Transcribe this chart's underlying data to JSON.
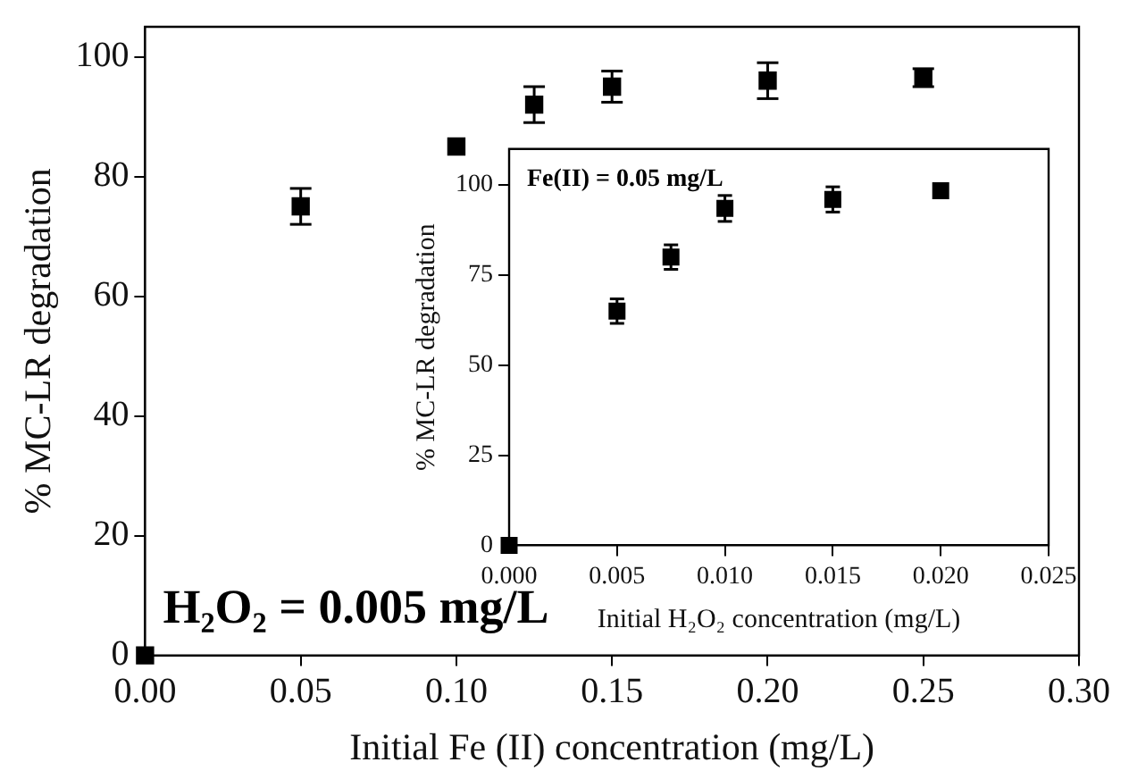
{
  "chart_data": [
    {
      "type": "scatter",
      "xlabel": "Initial Fe (II) concentration (mg/L)",
      "ylabel": "% MC-LR degradation",
      "annotations": [
        "H₂O₂ = 0.005 mg/L"
      ],
      "x": [
        0,
        0.05,
        0.1,
        0.125,
        0.15,
        0.2,
        0.25
      ],
      "series": [
        {
          "color": "#000000",
          "values": [
            0,
            75,
            85,
            92,
            95,
            96,
            96.5
          ],
          "errors": [
            null,
            3,
            null,
            3,
            2.6,
            3,
            1.5
          ]
        }
      ],
      "xlim": [
        0,
        0.3
      ],
      "xticks": [
        {
          "value": 0,
          "label": "0.00"
        },
        {
          "value": 0.05,
          "label": "0.05"
        },
        {
          "value": 0.1,
          "label": "0.10"
        },
        {
          "value": 0.15,
          "label": "0.15"
        },
        {
          "value": 0.2,
          "label": "0.20"
        },
        {
          "value": 0.25,
          "label": "0.25"
        },
        {
          "value": 0.3,
          "label": "0.30"
        }
      ],
      "ylim": [
        0,
        105
      ],
      "yticks": [
        0,
        20,
        40,
        60,
        80,
        100
      ],
      "grid": false,
      "legend": false,
      "marker": "square"
    },
    {
      "type": "scatter",
      "xlabel": "Initial H₂O₂ concentration (mg/L)",
      "ylabel": "% MC-LR degradation",
      "annotations": [
        "Fe(II) = 0.05 mg/L"
      ],
      "x": [
        0,
        0.005,
        0.0075,
        0.01,
        0.015,
        0.02
      ],
      "series": [
        {
          "color": "#000000",
          "values": [
            0,
            65,
            80,
            93.5,
            96,
            98.4
          ],
          "errors": [
            null,
            3.4,
            3.4,
            3.6,
            3.5,
            null
          ]
        }
      ],
      "xlim": [
        0,
        0.025
      ],
      "xticks": [
        {
          "value": 0,
          "label": "0.000"
        },
        {
          "value": 0.005,
          "label": "0.005"
        },
        {
          "value": 0.01,
          "label": "0.010"
        },
        {
          "value": 0.015,
          "label": "0.015"
        },
        {
          "value": 0.02,
          "label": "0.020"
        },
        {
          "value": 0.025,
          "label": "0.025"
        }
      ],
      "ylim": [
        0,
        110
      ],
      "yticks": [
        0,
        25,
        50,
        75,
        100
      ],
      "grid": false,
      "legend": false,
      "marker": "square"
    }
  ]
}
